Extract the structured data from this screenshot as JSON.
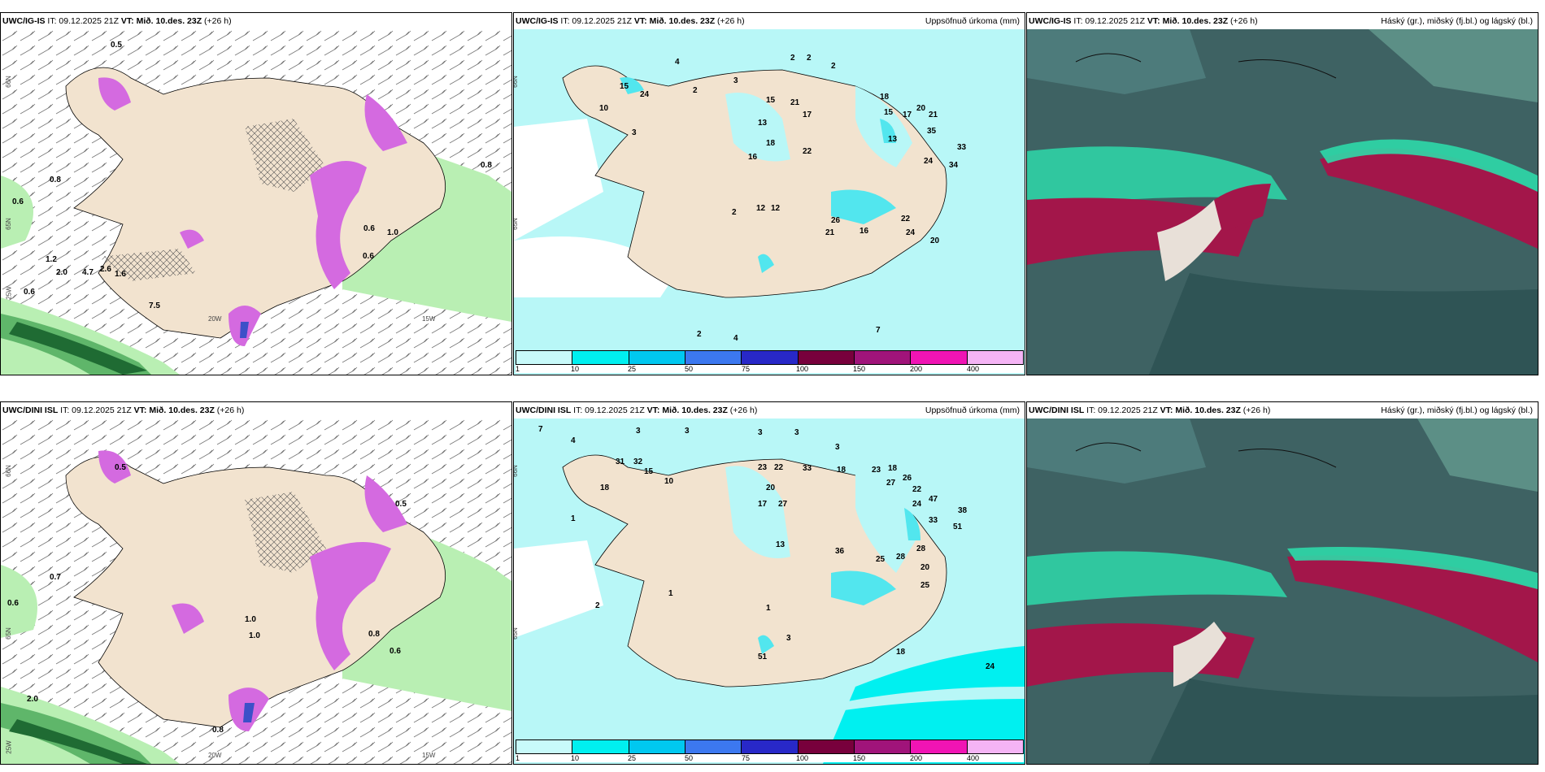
{
  "rows": [
    {
      "model": "UWC/IG-IS",
      "panels": [
        {
          "model": "UWC/IG-IS",
          "it": "IT: 09.12.2025 21Z",
          "vt": "VT: Mið. 10.des. 23Z",
          "lead": "(+26 h)",
          "right": ""
        },
        {
          "model": "UWC/IG-IS",
          "it": "IT: 09.12.2025 21Z",
          "vt": "VT: Mið. 10.des. 23Z",
          "lead": "(+26 h)",
          "right": "Uppsöfnuð úrkoma (mm)"
        },
        {
          "model": "UWC/IG-IS",
          "it": "IT: 09.12.2025 21Z",
          "vt": "VT: Mið. 10.des. 23Z",
          "lead": "(+26 h)",
          "right": "Háský (gr.), miðský (fj.bl.) og lágský (bl.)"
        }
      ],
      "wind_labels": [
        "0.5",
        "0.8",
        "0.6",
        "0.6",
        "0.8",
        "0.6",
        "1.2",
        "2.0",
        "4.7",
        "2.6",
        "1.6",
        "7.5",
        "0.6",
        "1.0"
      ],
      "precip_labels": [
        "4",
        "3",
        "2",
        "2",
        "2",
        "2",
        "15",
        "24",
        "10",
        "3",
        "15",
        "21",
        "17",
        "18",
        "15",
        "17",
        "20",
        "21",
        "13",
        "13",
        "35",
        "33",
        "34",
        "24",
        "18",
        "16",
        "22",
        "12",
        "26",
        "21",
        "16",
        "22",
        "24",
        "20",
        "12",
        "2",
        "2",
        "4",
        "7"
      ]
    },
    {
      "model": "UWC/DINI ISL",
      "panels": [
        {
          "model": "UWC/DINI ISL",
          "it": "IT: 09.12.2025 21Z",
          "vt": "VT: Mið. 10.des. 23Z",
          "lead": "(+26 h)",
          "right": ""
        },
        {
          "model": "UWC/DINI ISL",
          "it": "IT: 09.12.2025 21Z",
          "vt": "VT: Mið. 10.des. 23Z",
          "lead": "(+26 h)",
          "right": "Uppsöfnuð úrkoma (mm)"
        },
        {
          "model": "UWC/DINI ISL",
          "it": "IT: 09.12.2025 21Z",
          "vt": "VT: Mið. 10.des. 23Z",
          "lead": "(+26 h)",
          "right": "Háský (gr.), miðský (fj.bl.) og lágský (bl.)"
        }
      ],
      "wind_labels": [
        "0.5",
        "0.7",
        "0.6",
        "0.8",
        "0.6",
        "2.0",
        "0.8",
        "1.0",
        "0.5",
        "1.0"
      ],
      "precip_labels": [
        "7",
        "4",
        "3",
        "3",
        "3",
        "3",
        "3",
        "31",
        "32",
        "18",
        "15",
        "10",
        "23",
        "22",
        "33",
        "18",
        "23",
        "18",
        "27",
        "26",
        "22",
        "47",
        "38",
        "51",
        "33",
        "24",
        "20",
        "17",
        "27",
        "13",
        "36",
        "25",
        "28",
        "28",
        "20",
        "25",
        "18",
        "24",
        "1",
        "2",
        "1",
        "1",
        "3",
        "51"
      ]
    }
  ],
  "axis_labels": {
    "lon_20": "20W",
    "lon_15": "15W",
    "lat_65": "65N",
    "lat_66": "66N",
    "lon_25": "25W"
  },
  "legend": {
    "labels": [
      "1",
      "10",
      "25",
      "50",
      "75",
      "100",
      "150",
      "200",
      "400"
    ],
    "colors": [
      "#c8fafa",
      "#00f0f0",
      "#00c8f0",
      "#3c78f0",
      "#2828c8",
      "#78003c",
      "#a0147a",
      "#f014b4",
      "#f5b4f5"
    ]
  },
  "colors": {
    "land": "#f2e3cf",
    "precip_light": "#b8f7f7",
    "precip_mid": "#52e6ee",
    "wind_green": "#b9efb3",
    "cloud_dark": "#3e6263",
    "cloud_teal": "#2ed9a9",
    "cloud_red": "#a3164a"
  }
}
